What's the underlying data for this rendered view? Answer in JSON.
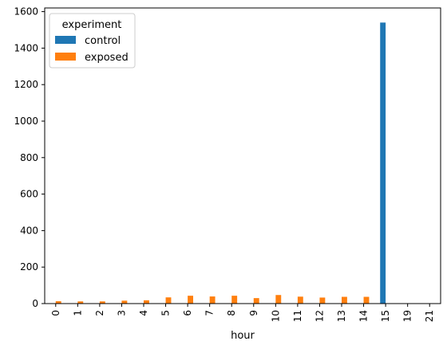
{
  "chart_data": {
    "type": "bar",
    "title": "",
    "xlabel": "hour",
    "ylabel": "",
    "categories": [
      "0",
      "1",
      "2",
      "3",
      "4",
      "5",
      "6",
      "7",
      "8",
      "9",
      "10",
      "11",
      "12",
      "13",
      "14",
      "15",
      "19",
      "21"
    ],
    "series": [
      {
        "name": "control",
        "color": "#1f77b4",
        "values": [
          0,
          0,
          0,
          0,
          0,
          0,
          0,
          0,
          0,
          0,
          0,
          0,
          0,
          0,
          0,
          1540,
          0,
          0
        ]
      },
      {
        "name": "exposed",
        "color": "#ff7f0e",
        "values": [
          13,
          12,
          12,
          16,
          18,
          34,
          43,
          39,
          43,
          30,
          47,
          38,
          33,
          37,
          37,
          0,
          0,
          0
        ]
      }
    ],
    "ylim": [
      0,
      1620
    ],
    "yticks": [
      0,
      200,
      400,
      600,
      800,
      1000,
      1200,
      1400,
      1600
    ],
    "legend": {
      "title": "experiment",
      "placement": "top-left"
    },
    "grid": false
  }
}
